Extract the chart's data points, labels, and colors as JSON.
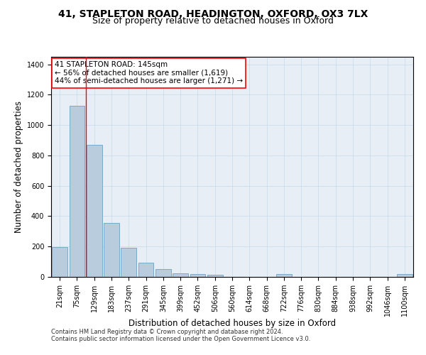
{
  "title1": "41, STAPLETON ROAD, HEADINGTON, OXFORD, OX3 7LX",
  "title2": "Size of property relative to detached houses in Oxford",
  "xlabel": "Distribution of detached houses by size in Oxford",
  "ylabel": "Number of detached properties",
  "footnote1": "Contains HM Land Registry data © Crown copyright and database right 2024.",
  "footnote2": "Contains public sector information licensed under the Open Government Licence v3.0.",
  "annotation_line1": "41 STAPLETON ROAD: 145sqm",
  "annotation_line2": "← 56% of detached houses are smaller (1,619)",
  "annotation_line3": "44% of semi-detached houses are larger (1,271) →",
  "categories": [
    "21sqm",
    "75sqm",
    "129sqm",
    "183sqm",
    "237sqm",
    "291sqm",
    "345sqm",
    "399sqm",
    "452sqm",
    "506sqm",
    "560sqm",
    "614sqm",
    "668sqm",
    "722sqm",
    "776sqm",
    "830sqm",
    "884sqm",
    "938sqm",
    "992sqm",
    "1046sqm",
    "1100sqm"
  ],
  "values": [
    195,
    1125,
    870,
    355,
    190,
    95,
    52,
    25,
    18,
    13,
    0,
    0,
    0,
    18,
    0,
    0,
    0,
    0,
    0,
    0,
    18
  ],
  "bar_color": "#b8ccde",
  "bar_edge_color": "#7aaac8",
  "red_line_index": 2,
  "ylim": [
    0,
    1450
  ],
  "yticks": [
    0,
    200,
    400,
    600,
    800,
    1000,
    1200,
    1400
  ],
  "grid_color": "#c8d8e8",
  "background_color": "#e8eef5",
  "title1_fontsize": 10,
  "title2_fontsize": 9,
  "xlabel_fontsize": 8.5,
  "ylabel_fontsize": 8.5,
  "annot_fontsize": 7.5,
  "tick_fontsize": 7,
  "footnote_fontsize": 6
}
